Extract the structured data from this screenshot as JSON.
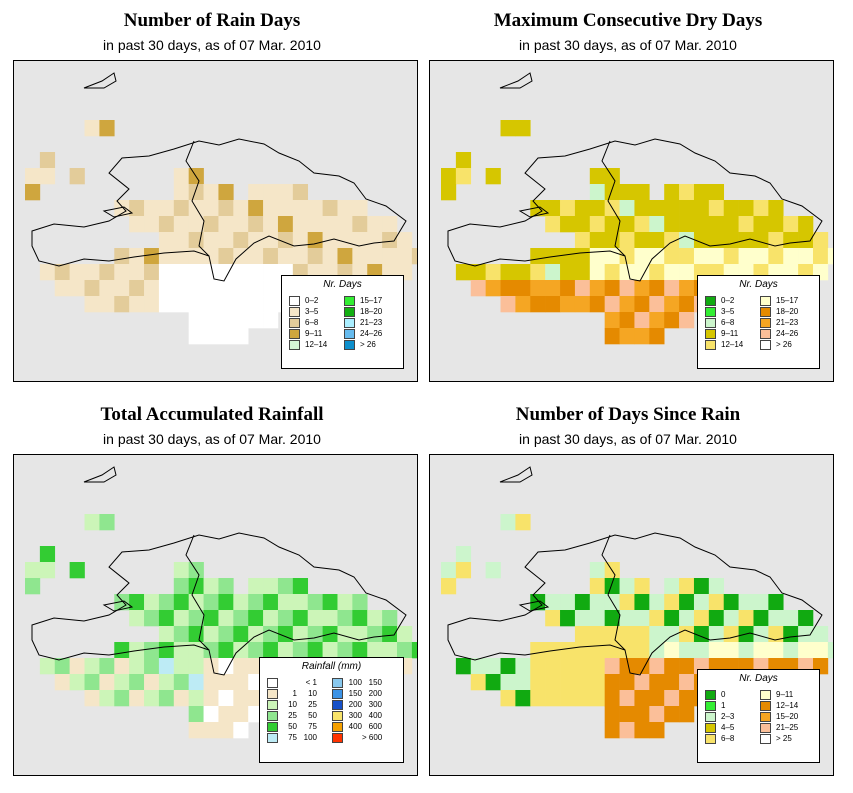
{
  "panels": [
    {
      "title": "Number of Rain Days",
      "subtitle": "in past 30 days, as of  07 Mar. 2010",
      "legend": {
        "title": "Nr. Days",
        "items": [
          {
            "label": "0–2",
            "color": "#ffffff"
          },
          {
            "label": "3–5",
            "color": "#f5e6c8"
          },
          {
            "label": "6–8",
            "color": "#e3cc9a"
          },
          {
            "label": "9–11",
            "color": "#cfa63e"
          },
          {
            "label": "12–14",
            "color": "#d6f5d6"
          },
          {
            "label": "15–17",
            "color": "#33ee33"
          },
          {
            "label": "18–20",
            "color": "#13b013"
          },
          {
            "label": "21–23",
            "color": "#aaeeff"
          },
          {
            "label": "24–26",
            "color": "#66bbee"
          },
          {
            "label": "> 26",
            "color": "#0d8fcc"
          }
        ]
      }
    },
    {
      "title": "Maximum Consecutive Dry Days",
      "subtitle": "in past 30 days, as of  07 Mar. 2010",
      "legend": {
        "title": "Nr. Days",
        "items": [
          {
            "label": "0–2",
            "color": "#11aa11"
          },
          {
            "label": "3–5",
            "color": "#33ee33"
          },
          {
            "label": "6–8",
            "color": "#ccf5cc"
          },
          {
            "label": "9–11",
            "color": "#d6c600"
          },
          {
            "label": "12–14",
            "color": "#f8e36a"
          },
          {
            "label": "15–17",
            "color": "#ffffcc"
          },
          {
            "label": "18–20",
            "color": "#e58a00"
          },
          {
            "label": "21–23",
            "color": "#f5a623"
          },
          {
            "label": "24–26",
            "color": "#fbbf99"
          },
          {
            "label": "> 26",
            "color": "#ffffff"
          }
        ]
      }
    },
    {
      "title": "Total Accumulated Rainfall",
      "subtitle": "in past 30 days, as of  07 Mar. 2010",
      "legend": {
        "title": "Rainfall (mm)",
        "items": [
          {
            "a": "",
            "b": "< 1",
            "color": "#ffffff"
          },
          {
            "a": "1",
            "b": "10",
            "color": "#f5e6c8"
          },
          {
            "a": "10",
            "b": "25",
            "color": "#ccf5b8"
          },
          {
            "a": "25",
            "b": "50",
            "color": "#8fe68f"
          },
          {
            "a": "50",
            "b": "75",
            "color": "#33cc33"
          },
          {
            "a": "75",
            "b": "100",
            "color": "#bdebf5"
          },
          {
            "a": "100",
            "b": "150",
            "color": "#88c8ee"
          },
          {
            "a": "150",
            "b": "200",
            "color": "#3c93e6"
          },
          {
            "a": "200",
            "b": "300",
            "color": "#1650c8"
          },
          {
            "a": "300",
            "b": "400",
            "color": "#f8e36a"
          },
          {
            "a": "400",
            "b": "600",
            "color": "#f5a000"
          },
          {
            "a": "",
            "b": "> 600",
            "color": "#ff3300"
          }
        ]
      }
    },
    {
      "title": "Number of Days Since Rain",
      "subtitle": "in past 30 days, as of  07 Mar. 2010",
      "legend": {
        "title": "Nr. Days",
        "items": [
          {
            "label": "0",
            "color": "#11aa11"
          },
          {
            "label": "1",
            "color": "#33ee33"
          },
          {
            "label": "2–3",
            "color": "#ccf5cc"
          },
          {
            "label": "4–5",
            "color": "#d6c600"
          },
          {
            "label": "6–8",
            "color": "#f8e36a"
          },
          {
            "label": "9–11",
            "color": "#ffffcc"
          },
          {
            "label": "12–14",
            "color": "#e58a00"
          },
          {
            "label": "15–20",
            "color": "#f5a623"
          },
          {
            "label": "21–25",
            "color": "#fbbf99"
          },
          {
            "label": "> 25",
            "color": "#ffffff"
          }
        ]
      }
    }
  ]
}
